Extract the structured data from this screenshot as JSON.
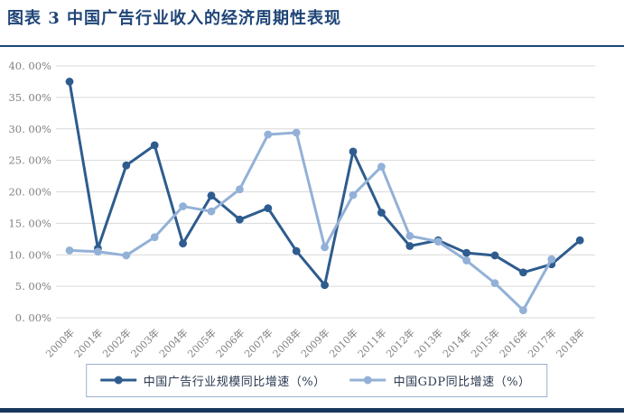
{
  "header": {
    "title": "图表 3  中国广告行业收入的经济周期性表现"
  },
  "colors": {
    "title": "#1f4577",
    "title_rule": "#1f4577",
    "bottom_bar": "#17375e",
    "grid": "#d9d9d9",
    "axis_text": "#808080",
    "legend_border": "#9ab0cf",
    "legend_text": "#2a3950",
    "background": "#ffffff"
  },
  "chart_data": {
    "type": "line",
    "title": "中国广告行业收入的经济周期性表现",
    "categories": [
      "2000年",
      "2001年",
      "2002年",
      "2003年",
      "2004年",
      "2005年",
      "2006年",
      "2007年",
      "2008年",
      "2009年",
      "2010年",
      "2011年",
      "2012年",
      "2013年",
      "2014年",
      "2015年",
      "2016年",
      "2017年",
      "2018年"
    ],
    "series": [
      {
        "name": "中国广告行业规模同比增速（%）",
        "color": "#2e5c8e",
        "values": [
          37.5,
          11.0,
          24.2,
          27.4,
          11.8,
          19.4,
          15.6,
          17.4,
          10.6,
          5.2,
          26.4,
          16.7,
          11.4,
          12.3,
          10.3,
          9.9,
          7.2,
          8.5,
          12.3
        ]
      },
      {
        "name": "中国GDP同比增速（%）",
        "color": "#93b1d7",
        "values": [
          10.7,
          10.5,
          9.9,
          12.8,
          17.7,
          16.9,
          20.4,
          29.1,
          29.4,
          11.2,
          19.5,
          24.0,
          13.0,
          12.1,
          9.1,
          5.5,
          1.2,
          9.3,
          null
        ]
      }
    ],
    "y_ticks": [
      "0. 00%",
      "5. 00%",
      "10. 00%",
      "15. 00%",
      "20. 00%",
      "25. 00%",
      "30. 00%",
      "35. 00%",
      "40. 00%"
    ],
    "ylim": [
      0,
      40
    ],
    "y_step": 5,
    "grid": true,
    "legend_position": "bottom"
  }
}
